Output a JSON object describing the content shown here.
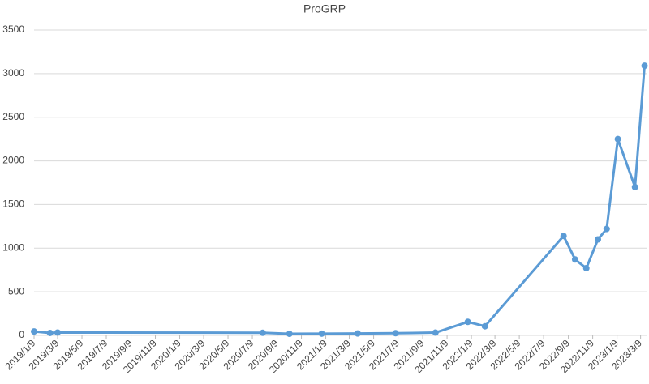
{
  "chart_data": {
    "type": "line",
    "title": "ProGRP",
    "x": [
      "2019/1/9",
      "2019/2/18",
      "2019/3/9",
      "2020/8/4",
      "2020/10/10",
      "2020/12/30",
      "2021/3/30",
      "2021/7/3",
      "2021/10/11",
      "2021/12/31",
      "2022/2/12",
      "2022/8/28",
      "2022/9/26",
      "2022/10/24",
      "2022/11/22",
      "2022/12/14",
      "2023/1/11",
      "2023/2/23",
      "2023/3/19"
    ],
    "series": [
      {
        "name": "ProGRP",
        "color": "#5b9bd5",
        "values": [
          45,
          28,
          33,
          30,
          18,
          20,
          22,
          25,
          32,
          155,
          105,
          1140,
          870,
          770,
          1100,
          1220,
          2250,
          1700,
          3090
        ]
      }
    ],
    "xlim": [
      "2019/1/9",
      "2023/3/24"
    ],
    "xticks": [
      "2019/1/9",
      "2019/3/9",
      "2019/5/9",
      "2019/7/9",
      "2019/9/9",
      "2019/11/9",
      "2020/1/9",
      "2020/3/9",
      "2020/5/9",
      "2020/7/9",
      "2020/9/9",
      "2020/11/9",
      "2021/1/9",
      "2021/3/9",
      "2021/5/9",
      "2021/7/9",
      "2021/9/9",
      "2021/11/9",
      "2022/1/9",
      "2022/3/9",
      "2022/5/9",
      "2022/7/9",
      "2022/9/9",
      "2022/11/9",
      "2023/1/9",
      "2023/3/9"
    ],
    "ylim": [
      0,
      3500
    ],
    "yticks": [
      0,
      500,
      1000,
      1500,
      2000,
      2500,
      3000,
      3500
    ],
    "grid": true
  }
}
